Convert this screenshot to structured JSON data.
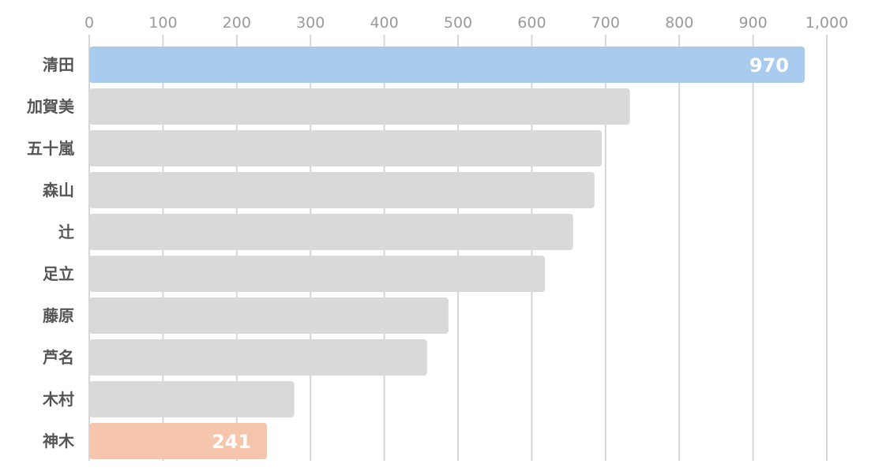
{
  "chart_data": {
    "type": "bar",
    "orientation": "horizontal",
    "categories": [
      "清田",
      "加賀美",
      "五十嵐",
      "森山",
      "辻",
      "足立",
      "藤原",
      "芦名",
      "木村",
      "神木"
    ],
    "values": [
      970,
      733,
      695,
      685,
      656,
      618,
      487,
      458,
      278,
      241
    ],
    "data_labels": [
      {
        "category": "清田",
        "text": "970"
      },
      {
        "category": "神木",
        "text": "241"
      }
    ],
    "xlim": [
      0,
      1000
    ],
    "x_ticks": [
      0,
      100,
      200,
      300,
      400,
      500,
      600,
      700,
      800,
      900,
      1000
    ],
    "x_tick_labels": [
      "0",
      "100",
      "200",
      "300",
      "400",
      "500",
      "600",
      "700",
      "800",
      "900",
      "1,000"
    ],
    "axis_position": "top",
    "grid": true,
    "legend": "none",
    "title": "",
    "xlabel": "",
    "ylabel": "",
    "colors": {
      "default": "#d9d9d9",
      "highlight_top": "#a9cbee",
      "highlight_bottom": "#f5c6ab",
      "grid": "#d6d6d6",
      "tick_text": "#9a9a9a",
      "category_text": "#555555",
      "data_label_text": "#ffffff"
    },
    "bar_colors": [
      "#a9cbee",
      "#d9d9d9",
      "#d9d9d9",
      "#d9d9d9",
      "#d9d9d9",
      "#d9d9d9",
      "#d9d9d9",
      "#d9d9d9",
      "#d9d9d9",
      "#f5c6ab"
    ]
  }
}
